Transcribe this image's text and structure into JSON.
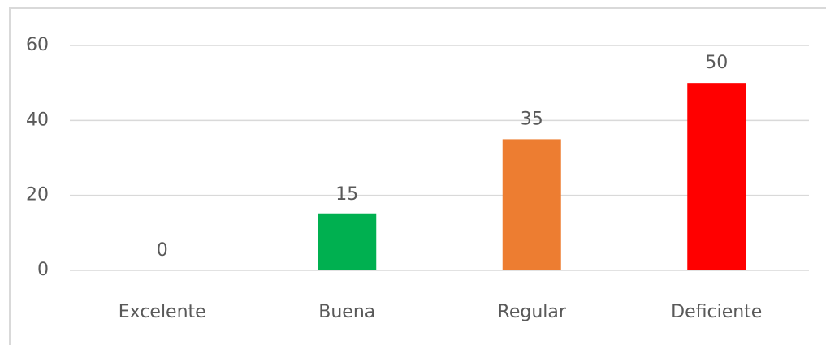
{
  "chart_data": {
    "type": "bar",
    "categories": [
      "Excelente",
      "Buena",
      "Regular",
      "Deficiente"
    ],
    "values": [
      0,
      15,
      35,
      50
    ],
    "colors": [
      "#4472c4",
      "#00b050",
      "#ed7d31",
      "#ff0000"
    ],
    "ylim": [
      0,
      60
    ],
    "yticks": [
      0,
      20,
      40,
      60
    ],
    "grid": true
  }
}
